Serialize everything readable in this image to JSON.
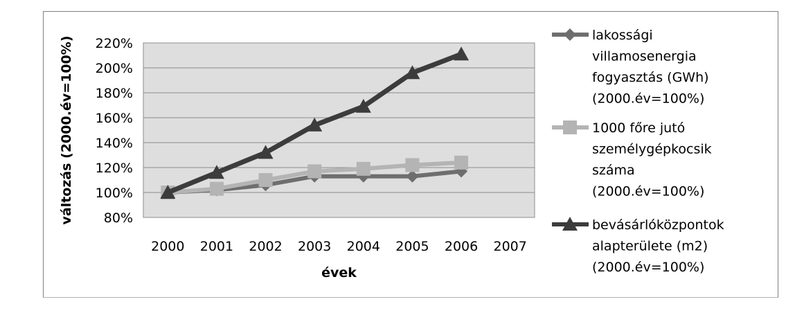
{
  "chart_data": {
    "type": "line",
    "title": "",
    "xlabel": "évek",
    "ylabel": "változás (2000.év=100%)",
    "categories": [
      "2000",
      "2001",
      "2002",
      "2003",
      "2004",
      "2005",
      "2006",
      "2007"
    ],
    "y_ticks": [
      "80%",
      "100%",
      "120%",
      "140%",
      "160%",
      "180%",
      "200%",
      "220%"
    ],
    "ylim": [
      0.8,
      2.2
    ],
    "grid": true,
    "legend_position": "right",
    "series": [
      {
        "name": "lakossági villamosenergia fogyasztás (GWh) (2000.év=100%)",
        "legend_lines": [
          "lakossági",
          "villamosenergia",
          "fogyasztás (GWh)",
          "(2000.év=100%)"
        ],
        "marker": "diamond",
        "color": "#6e6e6e",
        "values": [
          1.0,
          1.02,
          1.06,
          1.13,
          1.13,
          1.13,
          1.17,
          null
        ]
      },
      {
        "name": "1000 főre jutó személygépkocsik száma (2000.év=100%)",
        "legend_lines": [
          "1000 főre jutó",
          "személygépkocsik",
          "száma",
          "(2000.év=100%)"
        ],
        "marker": "square",
        "color": "#b4b4b4",
        "values": [
          1.0,
          1.03,
          1.1,
          1.17,
          1.19,
          1.22,
          1.24,
          null
        ]
      },
      {
        "name": "bevásárlóközpontok alapterülete (m2) (2000.év=100%)",
        "legend_lines": [
          "bevásárlóközpontok",
          "alapterülete (m2)",
          "(2000.év=100%)"
        ],
        "marker": "triangle",
        "color": "#3c3c3c",
        "values": [
          1.0,
          1.16,
          1.32,
          1.54,
          1.69,
          1.96,
          2.11,
          null
        ]
      }
    ]
  },
  "colors": {
    "plot_background": "#dedede",
    "gridline": "#8c8c8c"
  }
}
